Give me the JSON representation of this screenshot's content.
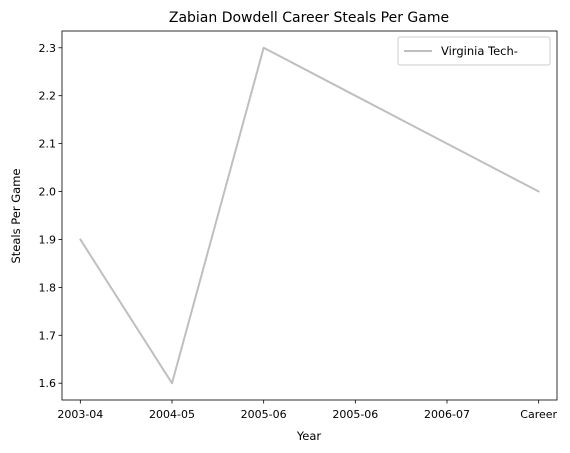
{
  "chart_data": {
    "type": "line",
    "title": "Zabian Dowdell Career Steals Per Game",
    "xlabel": "Year",
    "ylabel": "Steals Per Game",
    "categories": [
      "2003-04",
      "2004-05",
      "2005-06",
      "2005-06",
      "2006-07",
      "Career"
    ],
    "series": [
      {
        "name": "Virginia Tech-",
        "color": "#bfbfbf",
        "x": [
          0,
          1,
          2,
          3,
          4,
          5
        ],
        "values": [
          1.9,
          1.6,
          2.3,
          2.2,
          2.1,
          2.0
        ]
      }
    ],
    "ylim": [
      1.565,
      2.335
    ],
    "yticks": [
      1.6,
      1.7,
      1.8,
      1.9,
      2.0,
      2.1,
      2.2,
      2.3
    ],
    "yticklabels": [
      "1.6",
      "1.7",
      "1.8",
      "1.9",
      "2.0",
      "2.1",
      "2.2",
      "2.3"
    ],
    "xlim": [
      -0.2,
      5.2
    ],
    "xtick_positions": [
      0,
      1,
      2,
      3,
      4,
      5
    ],
    "grid": false,
    "legend_position": "upper right"
  }
}
